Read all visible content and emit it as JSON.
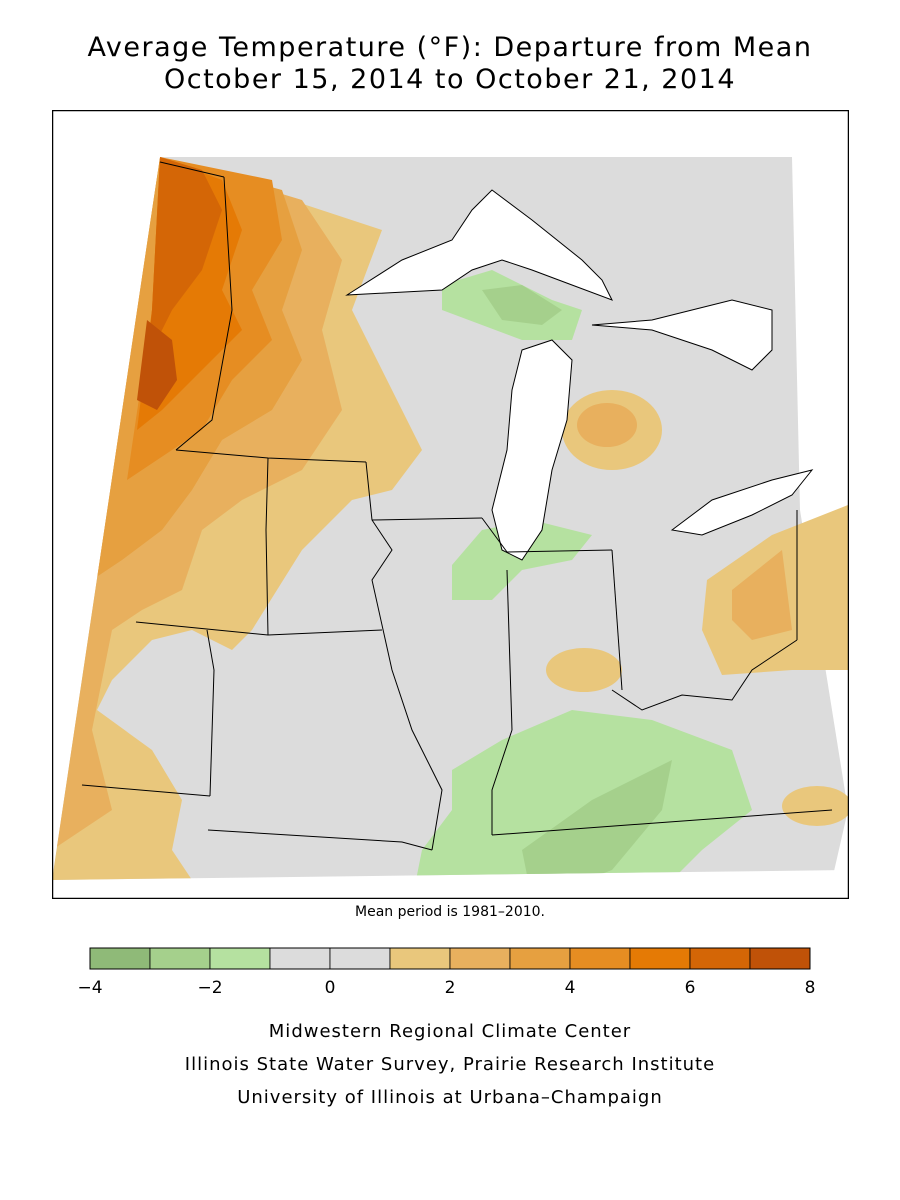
{
  "title": {
    "line1": "Average Temperature (°F): Departure from Mean",
    "line2": "October 15, 2014 to October 21, 2014"
  },
  "mean_note": "Mean period is 1981–2010.",
  "legend": {
    "ticks": [
      "−4",
      "−2",
      "0",
      "2",
      "4",
      "6",
      "8"
    ],
    "colors": [
      "#8fba78",
      "#a5d08c",
      "#b5e1a0",
      "#dcdcdc",
      "#dcdcdc",
      "#e9c77c",
      "#e8b05e",
      "#e6a040",
      "#e68d22",
      "#e57a05",
      "#d46606",
      "#c05208"
    ]
  },
  "credits": [
    "Midwestern Regional Climate Center",
    "Illinois State Water Survey, Prairie Research Institute",
    "University of Illinois at Urbana–Champaign"
  ],
  "colors": {
    "neutral": "#dcdcdc",
    "warm_1_2": "#e9c77c",
    "warm_2_3": "#e8b05e",
    "warm_3_4": "#e6a040",
    "warm_4_5": "#e68d22",
    "warm_5_6": "#e57a05",
    "warm_6_7": "#d46606",
    "warm_7_8": "#c05208",
    "cool_1_2": "#b5e1a0",
    "cool_2_3": "#a5d08c",
    "cool_3_4": "#8fba78"
  }
}
